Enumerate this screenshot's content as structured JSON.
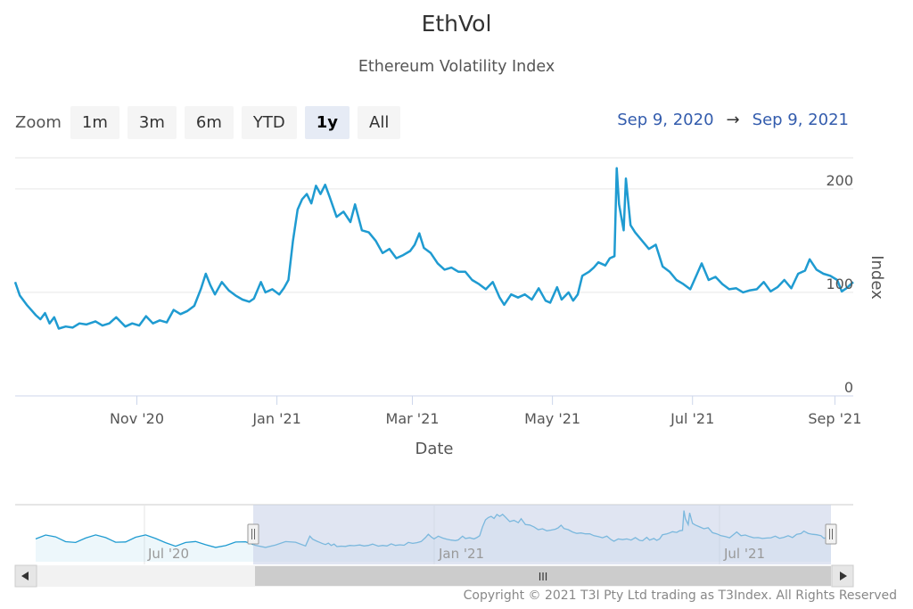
{
  "chart_data": {
    "type": "line",
    "title": "EthVol",
    "subtitle": "Ethereum Volatility Index",
    "xlabel": "Date",
    "ylabel": "Index",
    "ylim": [
      0,
      230
    ],
    "yticks": [
      0,
      100,
      200
    ],
    "xrange": [
      "2020-09-09",
      "2021-09-09"
    ],
    "xticks": [
      {
        "date": "2020-11-01",
        "label": "Nov '20"
      },
      {
        "date": "2021-01-01",
        "label": "Jan '21"
      },
      {
        "date": "2021-03-01",
        "label": "Mar '21"
      },
      {
        "date": "2021-05-01",
        "label": "May '21"
      },
      {
        "date": "2021-07-01",
        "label": "Jul '21"
      },
      {
        "date": "2021-09-01",
        "label": "Sep '21"
      }
    ],
    "series": [
      {
        "name": "EthVol",
        "color": "#1f9bd1",
        "points": [
          [
            "2020-09-09",
            110
          ],
          [
            "2020-09-11",
            97
          ],
          [
            "2020-09-14",
            88
          ],
          [
            "2020-09-16",
            83
          ],
          [
            "2020-09-18",
            78
          ],
          [
            "2020-09-20",
            74
          ],
          [
            "2020-09-22",
            80
          ],
          [
            "2020-09-24",
            70
          ],
          [
            "2020-09-26",
            76
          ],
          [
            "2020-09-28",
            65
          ],
          [
            "2020-10-01",
            67
          ],
          [
            "2020-10-04",
            66
          ],
          [
            "2020-10-07",
            70
          ],
          [
            "2020-10-10",
            69
          ],
          [
            "2020-10-14",
            72
          ],
          [
            "2020-10-17",
            68
          ],
          [
            "2020-10-20",
            70
          ],
          [
            "2020-10-23",
            76
          ],
          [
            "2020-10-27",
            67
          ],
          [
            "2020-10-30",
            70
          ],
          [
            "2020-11-02",
            68
          ],
          [
            "2020-11-05",
            77
          ],
          [
            "2020-11-08",
            70
          ],
          [
            "2020-11-11",
            73
          ],
          [
            "2020-11-14",
            71
          ],
          [
            "2020-11-17",
            83
          ],
          [
            "2020-11-20",
            79
          ],
          [
            "2020-11-23",
            82
          ],
          [
            "2020-11-26",
            87
          ],
          [
            "2020-11-29",
            104
          ],
          [
            "2020-12-01",
            118
          ],
          [
            "2020-12-03",
            107
          ],
          [
            "2020-12-05",
            98
          ],
          [
            "2020-12-08",
            110
          ],
          [
            "2020-12-11",
            102
          ],
          [
            "2020-12-14",
            97
          ],
          [
            "2020-12-17",
            93
          ],
          [
            "2020-12-20",
            91
          ],
          [
            "2020-12-22",
            94
          ],
          [
            "2020-12-25",
            110
          ],
          [
            "2020-12-27",
            100
          ],
          [
            "2020-12-30",
            103
          ],
          [
            "2021-01-02",
            98
          ],
          [
            "2021-01-04",
            104
          ],
          [
            "2021-01-06",
            112
          ],
          [
            "2021-01-08",
            150
          ],
          [
            "2021-01-10",
            180
          ],
          [
            "2021-01-12",
            190
          ],
          [
            "2021-01-14",
            195
          ],
          [
            "2021-01-16",
            186
          ],
          [
            "2021-01-18",
            203
          ],
          [
            "2021-01-20",
            195
          ],
          [
            "2021-01-22",
            204
          ],
          [
            "2021-01-24",
            192
          ],
          [
            "2021-01-27",
            173
          ],
          [
            "2021-01-30",
            178
          ],
          [
            "2021-02-02",
            168
          ],
          [
            "2021-02-04",
            185
          ],
          [
            "2021-02-07",
            160
          ],
          [
            "2021-02-10",
            158
          ],
          [
            "2021-02-13",
            150
          ],
          [
            "2021-02-16",
            138
          ],
          [
            "2021-02-19",
            142
          ],
          [
            "2021-02-22",
            133
          ],
          [
            "2021-02-25",
            136
          ],
          [
            "2021-02-28",
            140
          ],
          [
            "2021-03-02",
            146
          ],
          [
            "2021-03-04",
            157
          ],
          [
            "2021-03-06",
            143
          ],
          [
            "2021-03-09",
            138
          ],
          [
            "2021-03-12",
            128
          ],
          [
            "2021-03-15",
            122
          ],
          [
            "2021-03-18",
            124
          ],
          [
            "2021-03-21",
            120
          ],
          [
            "2021-03-24",
            120
          ],
          [
            "2021-03-27",
            112
          ],
          [
            "2021-03-30",
            108
          ],
          [
            "2021-04-02",
            103
          ],
          [
            "2021-04-05",
            110
          ],
          [
            "2021-04-08",
            95
          ],
          [
            "2021-04-10",
            88
          ],
          [
            "2021-04-13",
            98
          ],
          [
            "2021-04-16",
            95
          ],
          [
            "2021-04-19",
            98
          ],
          [
            "2021-04-22",
            93
          ],
          [
            "2021-04-25",
            104
          ],
          [
            "2021-04-28",
            92
          ],
          [
            "2021-04-30",
            90
          ],
          [
            "2021-05-03",
            105
          ],
          [
            "2021-05-05",
            93
          ],
          [
            "2021-05-08",
            100
          ],
          [
            "2021-05-10",
            92
          ],
          [
            "2021-05-12",
            98
          ],
          [
            "2021-05-14",
            116
          ],
          [
            "2021-05-17",
            120
          ],
          [
            "2021-05-19",
            124
          ],
          [
            "2021-05-21",
            129
          ],
          [
            "2021-05-24",
            126
          ],
          [
            "2021-05-26",
            133
          ],
          [
            "2021-05-28",
            135
          ],
          [
            "2021-05-29",
            220
          ],
          [
            "2021-05-30",
            185
          ],
          [
            "2021-06-01",
            160
          ],
          [
            "2021-06-02",
            210
          ],
          [
            "2021-06-04",
            165
          ],
          [
            "2021-06-06",
            158
          ],
          [
            "2021-06-09",
            150
          ],
          [
            "2021-06-12",
            142
          ],
          [
            "2021-06-15",
            146
          ],
          [
            "2021-06-18",
            125
          ],
          [
            "2021-06-21",
            120
          ],
          [
            "2021-06-24",
            112
          ],
          [
            "2021-06-27",
            108
          ],
          [
            "2021-06-30",
            103
          ],
          [
            "2021-07-03",
            118
          ],
          [
            "2021-07-05",
            128
          ],
          [
            "2021-07-08",
            112
          ],
          [
            "2021-07-11",
            115
          ],
          [
            "2021-07-14",
            108
          ],
          [
            "2021-07-17",
            103
          ],
          [
            "2021-07-20",
            104
          ],
          [
            "2021-07-23",
            100
          ],
          [
            "2021-07-26",
            102
          ],
          [
            "2021-07-29",
            103
          ],
          [
            "2021-08-01",
            110
          ],
          [
            "2021-08-04",
            101
          ],
          [
            "2021-08-07",
            105
          ],
          [
            "2021-08-10",
            112
          ],
          [
            "2021-08-13",
            104
          ],
          [
            "2021-08-16",
            118
          ],
          [
            "2021-08-19",
            121
          ],
          [
            "2021-08-21",
            132
          ],
          [
            "2021-08-24",
            122
          ],
          [
            "2021-08-27",
            118
          ],
          [
            "2021-08-30",
            116
          ],
          [
            "2021-09-02",
            112
          ],
          [
            "2021-09-04",
            101
          ],
          [
            "2021-09-06",
            104
          ],
          [
            "2021-09-09",
            110
          ]
        ]
      }
    ]
  },
  "zoom": {
    "label": "Zoom",
    "buttons": [
      "1m",
      "3m",
      "6m",
      "YTD",
      "1y",
      "All"
    ],
    "active": "1y"
  },
  "range": {
    "from": "Sep 9, 2020",
    "arrow": "→",
    "to": "Sep 9, 2021"
  },
  "navigator": {
    "labels": [
      "Jul '20",
      "Jan '21",
      "Jul '21"
    ],
    "selected_from": "2020-09-09",
    "selected_to": "2021-09-09",
    "scrollbar_grip": "III"
  },
  "colors": {
    "line": "#1f9bd1",
    "grid": "#e6e6e6",
    "navigator_mask": "#c6d0e8"
  },
  "copyright": "Copyright © 2021 T3I Pty Ltd trading as T3Index. All Rights Reserved"
}
